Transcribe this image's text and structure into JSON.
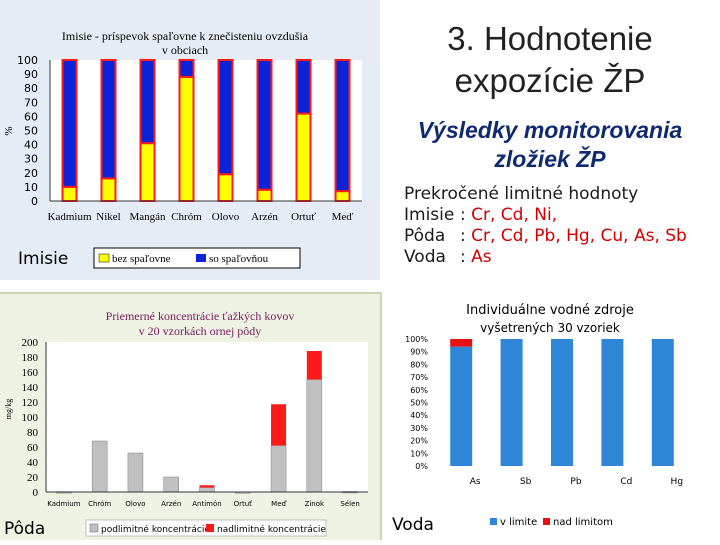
{
  "main_title": [
    "3. Hodnotenie",
    "expozície ŽP"
  ],
  "subtitle": [
    "Výsledky monitorovania",
    "zložiek ŽP"
  ],
  "exceeded": {
    "heading": "Prekročené limitné hodnoty",
    "rows": [
      {
        "label": "Imisie",
        "sep": ":",
        "values": "Cr, Cd, Ni,"
      },
      {
        "label": "Pôda",
        "sep": ":",
        "values": "Cr, Cd, Pb, Hg, Cu, As, Sb"
      },
      {
        "label": "Voda",
        "sep": ":",
        "values": "As"
      }
    ]
  },
  "colors": {
    "blue": "#0a22d8",
    "red": "#ff1a1a",
    "yellow": "#ffff00",
    "gray": "#c0c0c0"
  },
  "chart_data": [
    {
      "type": "bar",
      "stacked": true,
      "title": [
        "Imisie - príspevok spaľovne k znečisteniu ovzdušia",
        "v obciach"
      ],
      "ylabel": "%",
      "ylim": [
        0,
        100
      ],
      "yticks": [
        0,
        10,
        20,
        30,
        40,
        50,
        60,
        70,
        80,
        90,
        100
      ],
      "categories": [
        "Kadmium",
        "Nikel",
        "Mangán",
        "Chróm",
        "Olovo",
        "Arzén",
        "Ortuť",
        "Meď"
      ],
      "series": [
        {
          "name": "bez spaľovne",
          "values": [
            10,
            16,
            41,
            88,
            19,
            8,
            62,
            7
          ]
        },
        {
          "name": "so spaľovňou",
          "values": [
            90,
            84,
            59,
            12,
            81,
            92,
            38,
            93
          ]
        }
      ],
      "legend_position": "bottom",
      "corner_label": "Imisie"
    },
    {
      "type": "bar",
      "stacked": true,
      "title": [
        "Priemerné koncentrácie ťažkých kovov",
        "v 20 vzorkách ornej pôdy"
      ],
      "ylabel": "mg/kg",
      "ylim": [
        0,
        200
      ],
      "yticks": [
        0,
        20,
        40,
        60,
        80,
        100,
        120,
        140,
        160,
        180,
        200
      ],
      "categories": [
        "Kadmium",
        "Chróm",
        "Olovo",
        "Arzén",
        "Antimón",
        "Ortuť",
        "Meď",
        "Zinok",
        "Sélen"
      ],
      "series": [
        {
          "name": "podlimitné koncentrácie",
          "values": [
            0.5,
            68,
            52,
            20,
            6,
            0.3,
            62,
            150,
            0.7
          ]
        },
        {
          "name": "nadlimitné koncentrácie",
          "values": [
            0,
            0,
            0,
            0,
            3,
            0,
            55,
            38,
            0
          ]
        }
      ],
      "legend_position": "bottom",
      "corner_label": "Pôda"
    },
    {
      "type": "bar",
      "stacked": true,
      "title": [
        "Individuálne vodné zdroje",
        "vyšetrených 30 vzoriek"
      ],
      "ylim": [
        0,
        100
      ],
      "yticks": [
        "0%",
        "10%",
        "20%",
        "30%",
        "40%",
        "50%",
        "60%",
        "70%",
        "80%",
        "90%",
        "100%"
      ],
      "categories": [
        "As",
        "Sb",
        "Pb",
        "Cd",
        "Hg"
      ],
      "series": [
        {
          "name": "v limite",
          "values": [
            94,
            100,
            100,
            100,
            100
          ]
        },
        {
          "name": "nad limitom",
          "values": [
            6,
            0,
            0,
            0,
            0
          ]
        }
      ],
      "legend_position": "bottom",
      "corner_label": "Voda"
    }
  ]
}
